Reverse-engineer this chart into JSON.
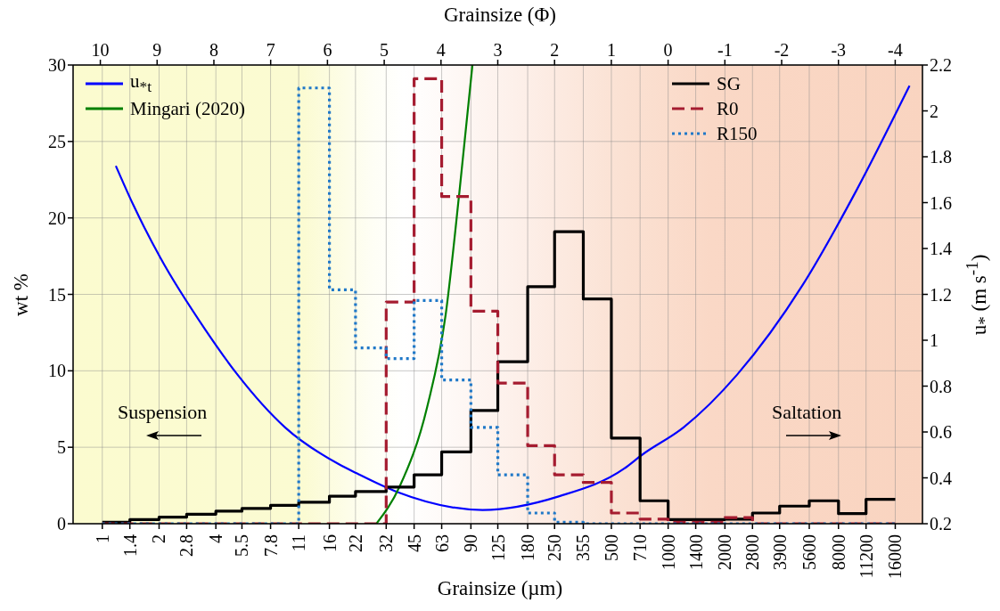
{
  "chart_data": {
    "type": "histogram",
    "xlabel": "Grainsize (µm)",
    "x2label": "Grainsize (Φ)",
    "ylabel": "wt %",
    "y2label": "u$_{*}$ (m s$^{-1}$)",
    "log": "x",
    "xlim": [
      0.7,
      22300
    ],
    "xticks": [
      1,
      1.4,
      2,
      2.8,
      4,
      5.5,
      7.8,
      11,
      16,
      22,
      32,
      45,
      63,
      90,
      125,
      180,
      250,
      355,
      500,
      710,
      1000,
      1400,
      2000,
      2800,
      3900,
      5600,
      8000,
      11200,
      16000
    ],
    "x2lim": [
      10.48,
      -4.48
    ],
    "x2ticks": [
      10,
      9,
      8,
      7,
      6,
      5,
      4,
      3,
      2,
      1,
      0,
      -1,
      -2,
      -3,
      -4
    ],
    "ylim": [
      0,
      30
    ],
    "yticks": [
      0,
      5,
      10,
      15,
      20,
      25,
      30
    ],
    "y2lim": [
      0.2,
      2.2
    ],
    "y2ticks": [
      0.2,
      0.4,
      0.6,
      0.8,
      1,
      1.2,
      1.4,
      1.6,
      1.8,
      2,
      2.2
    ],
    "grid": true,
    "legend": "top",
    "bins": [
      1,
      1.4,
      2,
      2.8,
      4,
      5.5,
      7.8,
      11,
      16,
      22,
      32,
      45,
      63,
      90,
      125,
      180,
      250,
      355,
      500,
      710,
      1000,
      1400,
      2000,
      2800,
      3900,
      5600,
      8000,
      11200,
      16000
    ],
    "series": [
      {
        "name": "u$_{*t}$",
        "type": "line",
        "axis": "y2",
        "color": "#0000ff",
        "line_style": "solid",
        "x": [
          1.18,
          1.46,
          2.03,
          3.49,
          5.21,
          9.31,
          17.9,
          22.3,
          36.2,
          103.8,
          265,
          584,
          726,
          1207,
          2322,
          5160,
          9910,
          19050
        ],
        "values": [
          1.76,
          1.59,
          1.36,
          1.05,
          0.85,
          0.62,
          0.46,
          0.42,
          0.34,
          0.26,
          0.32,
          0.44,
          0.5,
          0.62,
          0.85,
          1.24,
          1.65,
          2.11
        ]
      },
      {
        "name": "Mingari (2020)",
        "type": "line",
        "axis": "y2",
        "color": "#008000",
        "line_style": "solid",
        "x": [
          28.4,
          37.6,
          52.8,
          66.1,
          78.3,
          91.7
        ],
        "values": [
          0.2,
          0.36,
          0.71,
          1.11,
          1.65,
          2.2
        ]
      },
      {
        "name": "SG",
        "color": "#000000",
        "line_style": "solid",
        "values": [
          0.1,
          0.27,
          0.43,
          0.62,
          0.82,
          1.0,
          1.2,
          1.4,
          1.8,
          2.1,
          2.4,
          3.2,
          4.7,
          7.4,
          10.6,
          15.5,
          19.1,
          14.7,
          5.6,
          1.5,
          0.27,
          0.27,
          0.3,
          0.7,
          1.15,
          1.5,
          0.66,
          1.6
        ]
      },
      {
        "name": "R0",
        "color": "#a51c30",
        "line_style": "dashed",
        "values": [
          0,
          0,
          0,
          0,
          0,
          0,
          0,
          0,
          0,
          0,
          14.5,
          29.1,
          21.4,
          13.9,
          9.2,
          5.1,
          3.2,
          2.7,
          0.7,
          0.3,
          0.1,
          0.1,
          0.4,
          0,
          0,
          0,
          0,
          0
        ]
      },
      {
        "name": "R150",
        "color": "#1f78c8",
        "line_style": "dotted",
        "values": [
          0,
          0,
          0,
          0,
          0,
          0,
          0,
          28.5,
          15.3,
          11.5,
          10.8,
          14.6,
          9.4,
          6.3,
          3.2,
          0.7,
          0.1,
          0,
          0,
          0,
          0,
          0,
          0,
          0,
          0,
          0,
          0,
          0
        ]
      }
    ],
    "annotations": [
      "Suspension",
      "Saltation"
    ]
  }
}
